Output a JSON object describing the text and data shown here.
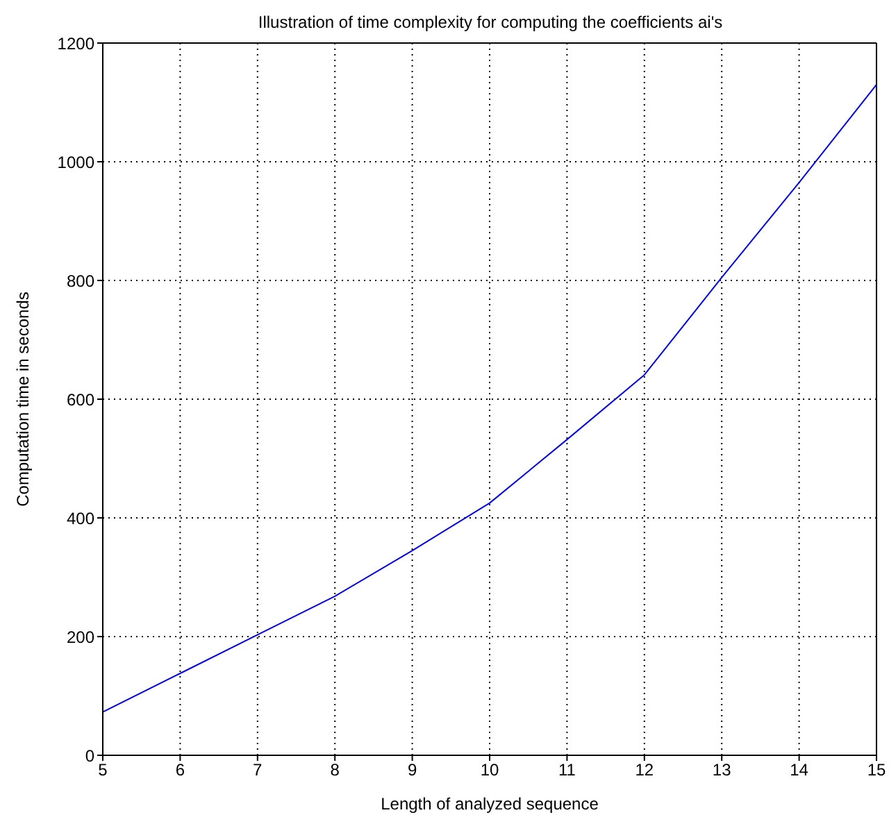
{
  "chart_data": {
    "type": "line",
    "title": "Illustration of time complexity for computing the coefficients ai's",
    "xlabel": "Length of analyzed sequence",
    "ylabel": "Computation time in seconds",
    "x": [
      5,
      6,
      7,
      8,
      9,
      10,
      11,
      12,
      13,
      14,
      15
    ],
    "series": [
      {
        "color": "#0000ff",
        "values": [
          73,
          138,
          203,
          268,
          345,
          425,
          532,
          641,
          805,
          965,
          1130
        ]
      }
    ],
    "xlim": [
      5,
      15
    ],
    "xticks": [
      5,
      6,
      7,
      8,
      9,
      10,
      11,
      12,
      13,
      14,
      15
    ],
    "ylim": [
      0,
      1200
    ],
    "yticks": [
      0,
      200,
      400,
      600,
      800,
      1000,
      1200
    ],
    "grid": true,
    "marker": "none",
    "line_style": "solid"
  }
}
